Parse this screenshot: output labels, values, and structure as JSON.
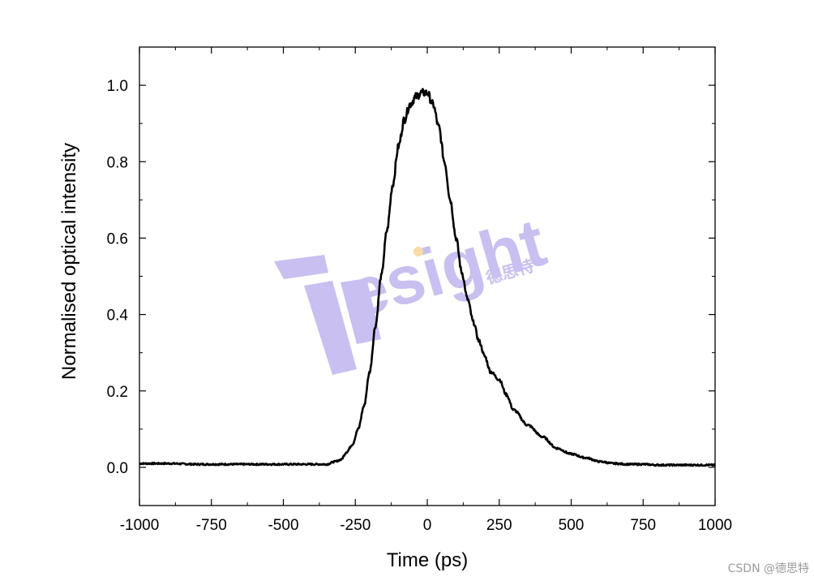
{
  "chart_data": {
    "type": "line",
    "title": "",
    "xlabel": "Time (ps)",
    "ylabel": "Normalised optical intensity",
    "xlim": [
      -1000,
      1000
    ],
    "ylim": [
      -0.1,
      1.1
    ],
    "xticks": [
      -1000,
      -750,
      -500,
      -250,
      0,
      250,
      500,
      750,
      1000
    ],
    "yticks": [
      0.0,
      0.2,
      0.4,
      0.6,
      0.8,
      1.0
    ],
    "xtick_labels": [
      "-1000",
      "-750",
      "-500",
      "-250",
      "0",
      "250",
      "500",
      "750",
      "1000"
    ],
    "ytick_labels": [
      "0.0",
      "0.2",
      "0.4",
      "0.6",
      "0.8",
      "1.0"
    ],
    "grid": false,
    "legend": "none",
    "series": [
      {
        "color": "#000000",
        "x": [
          -1000,
          -900,
          -800,
          -700,
          -600,
          -500,
          -400,
          -350,
          -320,
          -300,
          -280,
          -260,
          -240,
          -220,
          -200,
          -180,
          -160,
          -140,
          -120,
          -100,
          -80,
          -60,
          -40,
          -20,
          0,
          20,
          40,
          60,
          80,
          100,
          120,
          140,
          160,
          180,
          200,
          220,
          250,
          275,
          300,
          350,
          400,
          450,
          500,
          550,
          600,
          650,
          700,
          750,
          800,
          850,
          900,
          950,
          1000
        ],
        "y": [
          0.01,
          0.01,
          0.008,
          0.008,
          0.008,
          0.008,
          0.008,
          0.008,
          0.015,
          0.02,
          0.04,
          0.06,
          0.1,
          0.16,
          0.25,
          0.37,
          0.5,
          0.62,
          0.74,
          0.84,
          0.91,
          0.95,
          0.97,
          0.98,
          0.98,
          0.95,
          0.89,
          0.8,
          0.7,
          0.6,
          0.51,
          0.44,
          0.38,
          0.33,
          0.29,
          0.25,
          0.23,
          0.19,
          0.15,
          0.11,
          0.08,
          0.05,
          0.035,
          0.025,
          0.015,
          0.01,
          0.008,
          0.008,
          0.006,
          0.006,
          0.006,
          0.006,
          0.006
        ]
      }
    ]
  },
  "watermark": {
    "text": "esight",
    "cn_text": "德思特",
    "color": "#c9bff0",
    "dot_color": "#f7dca8"
  },
  "credit": "CSDN @德思特"
}
